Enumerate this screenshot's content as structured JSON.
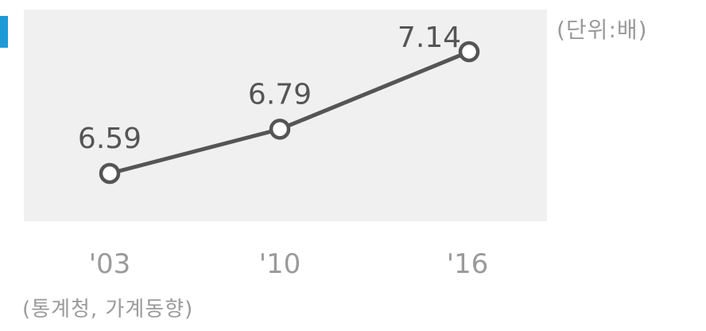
{
  "unit_label": "(단위:배)",
  "source_label": "(통계청, 가계동향)",
  "colors": {
    "accent": "#1e9bd7",
    "plot_background": "#f0f0f0",
    "line": "#555555",
    "marker_fill": "#ffffff",
    "text": "#555555",
    "muted_text": "#9a9a9a"
  },
  "chart_data": {
    "type": "line",
    "categories": [
      "'03",
      "'10",
      "'16"
    ],
    "values": [
      6.59,
      6.79,
      7.14
    ],
    "data_labels": [
      "6.59",
      "6.79",
      "7.14"
    ],
    "title": "",
    "xlabel": "",
    "ylabel": "",
    "grid": false,
    "legend": "none"
  }
}
